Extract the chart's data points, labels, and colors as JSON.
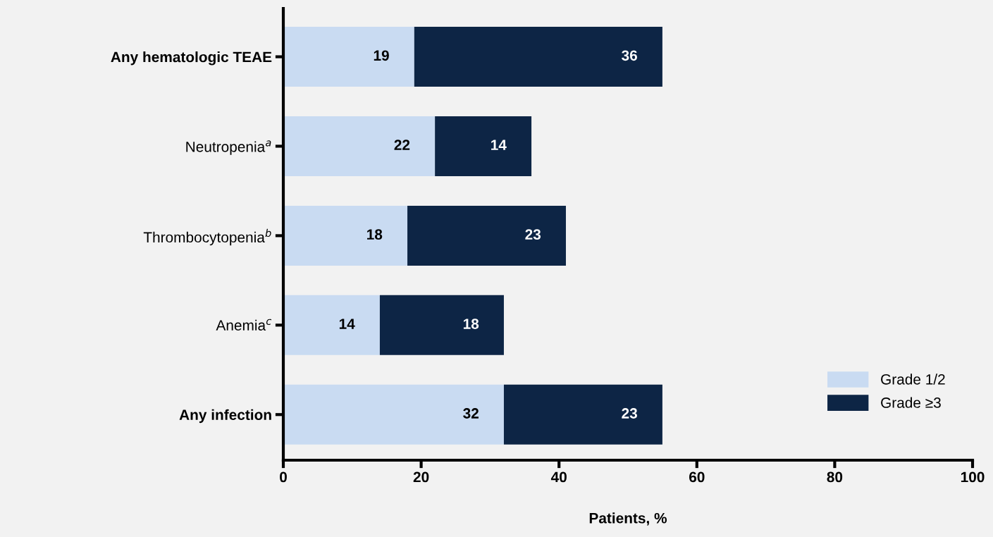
{
  "chart_data": {
    "type": "bar",
    "orientation": "horizontal",
    "stacked": true,
    "categories": [
      "Any hematologic TEAE",
      "Neutropenia$^{a}$",
      "Thrombocytopenia$^{b}$",
      "Anemia$^{c}$",
      "Any infection"
    ],
    "series": [
      {
        "name": "Grade 1/2",
        "color": "#c9dbf2",
        "values": [
          19,
          22,
          18,
          14,
          32
        ]
      },
      {
        "name": "Grade ≥3",
        "color": "#0d2545",
        "values": [
          36,
          14,
          23,
          18,
          23
        ]
      }
    ],
    "xlabel": "Patients, %",
    "xlim": [
      0,
      100
    ],
    "xticks": [
      0,
      20,
      40,
      60,
      80,
      100
    ],
    "data_labels": true,
    "legend": "bottom right",
    "grid": false
  }
}
